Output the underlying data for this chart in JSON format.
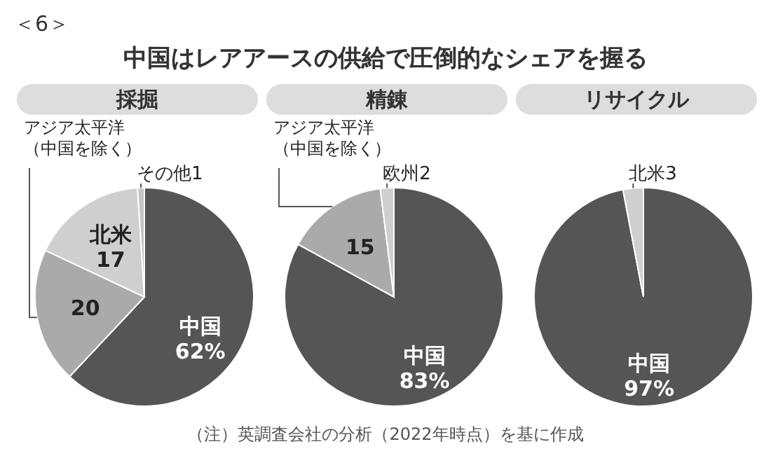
{
  "chart_data": [
    {
      "type": "pie",
      "title": "中国はレアアースの供給で圧倒的なシェアを握る",
      "subtitle": "採掘",
      "annotations": [
        "＜6＞"
      ],
      "categories": [
        "中国",
        "アジア太平洋（中国を除く）",
        "北米",
        "その他"
      ],
      "values": [
        62,
        20,
        17,
        1
      ],
      "colors": [
        "#555555",
        "#aaaaaa",
        "#cfcfcf",
        "#c4c4c4"
      ],
      "value_labels": [
        "62%",
        "20",
        "17",
        "1"
      ]
    },
    {
      "type": "pie",
      "subtitle": "精錬",
      "annotations": [
        "（注）英調査会社の分析（2022年時点）を基に作成"
      ],
      "categories": [
        "中国",
        "アジア太平洋（中国を除く）",
        "欧州"
      ],
      "values": [
        83,
        15,
        2
      ],
      "colors": [
        "#555555",
        "#aaaaaa",
        "#cfcfcf"
      ],
      "value_labels": [
        "83%",
        "15",
        "2"
      ]
    },
    {
      "type": "pie",
      "subtitle": "リサイクル",
      "categories": [
        "中国",
        "北米"
      ],
      "values": [
        97,
        3
      ],
      "colors": [
        "#555555",
        "#cfcfcf"
      ],
      "value_labels": [
        "97%",
        "3"
      ]
    }
  ]
}
